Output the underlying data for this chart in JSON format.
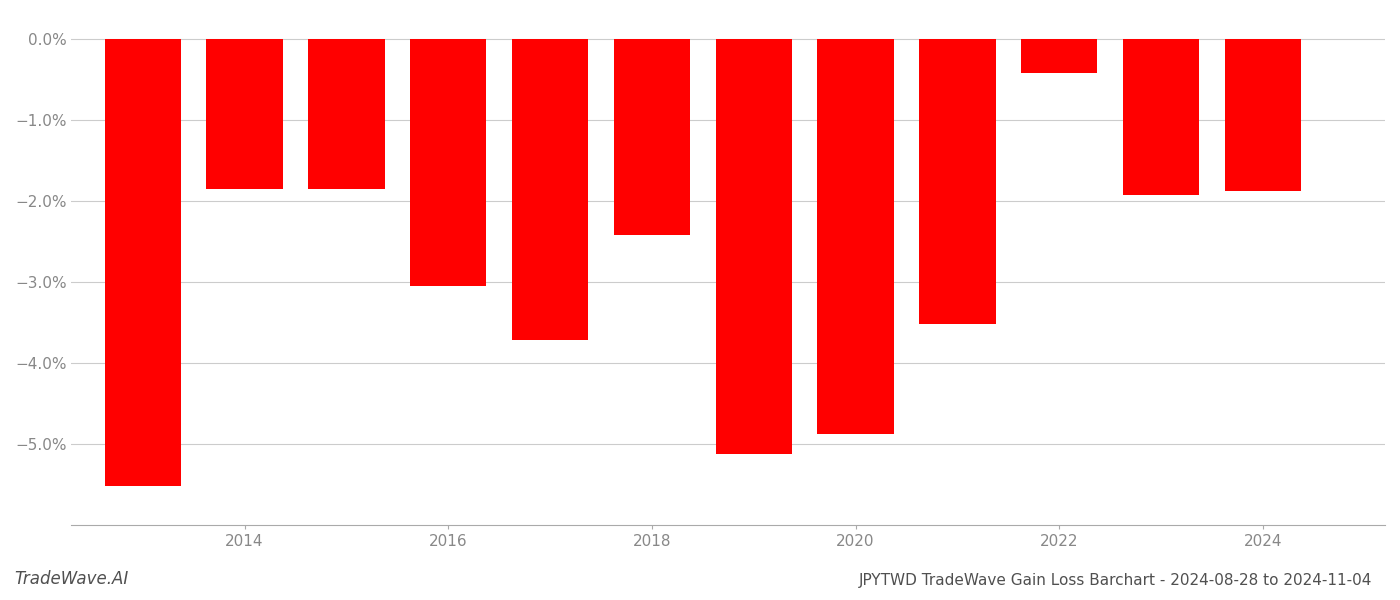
{
  "years": [
    2013,
    2014,
    2015,
    2016,
    2017,
    2018,
    2019,
    2020,
    2021,
    2022,
    2023,
    2024
  ],
  "values": [
    -5.52,
    -1.85,
    -1.85,
    -3.05,
    -3.72,
    -2.42,
    -5.12,
    -4.88,
    -3.52,
    -0.42,
    -1.92,
    -1.88
  ],
  "bar_color": "#ff0000",
  "ylim_min": -6.0,
  "ylim_max": 0.3,
  "yticks": [
    0.0,
    -1.0,
    -2.0,
    -3.0,
    -4.0,
    -5.0
  ],
  "ytick_labels": [
    "0.0%",
    "−1.0%",
    "−2.0%",
    "−3.0%",
    "−4.0%",
    "−5.0%"
  ],
  "xticks": [
    2014,
    2016,
    2018,
    2020,
    2022,
    2024
  ],
  "background_color": "#ffffff",
  "grid_color": "#cccccc",
  "axis_label_color": "#888888",
  "title_text": "JPYTWD TradeWave Gain Loss Barchart - 2024-08-28 to 2024-11-04",
  "watermark_text": "TradeWave.AI",
  "title_fontsize": 11,
  "watermark_fontsize": 12,
  "tick_fontsize": 11
}
